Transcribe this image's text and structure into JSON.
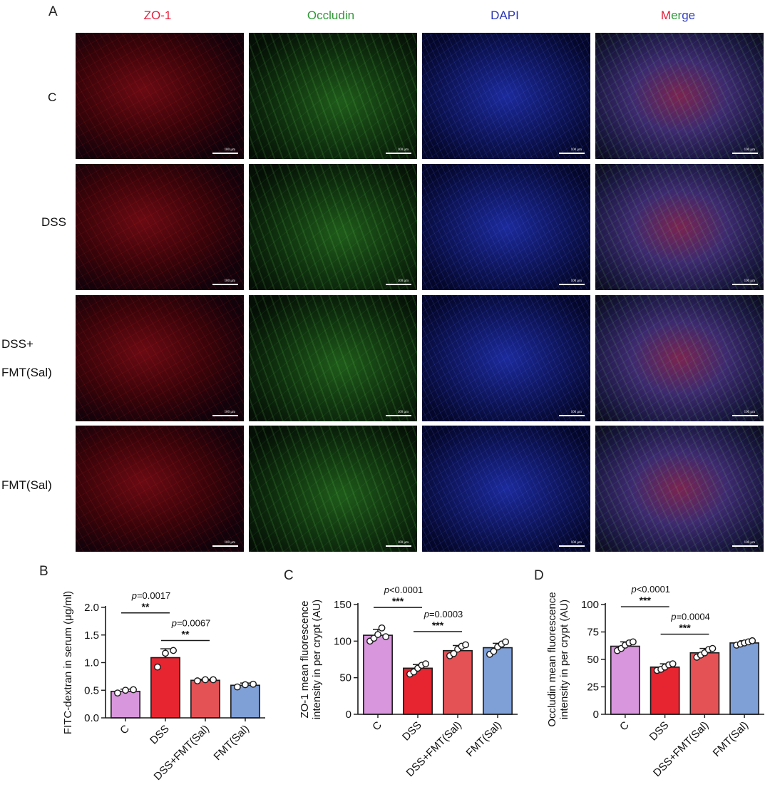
{
  "panel_a": {
    "letter": "A",
    "columns": [
      {
        "label": "ZO-1",
        "color": "#e2233e",
        "channel": "red"
      },
      {
        "label": "Occludin",
        "color": "#2f9a36",
        "channel": "green"
      },
      {
        "label": "DAPI",
        "color": "#2a35b8",
        "channel": "blue"
      },
      {
        "label": "Merge",
        "color": "#5c5fa8",
        "channel": "merge",
        "parts": [
          "M",
          "er",
          "ge"
        ]
      }
    ],
    "rows": [
      {
        "label_lines": [
          "C"
        ]
      },
      {
        "label_lines": [
          "DSS"
        ]
      },
      {
        "label_lines": [
          "DSS+",
          "FMT(Sal)"
        ]
      },
      {
        "label_lines": [
          "FMT(Sal)"
        ]
      }
    ],
    "scale_bar_text": "100 μm"
  },
  "chart_data": [
    {
      "panel": "B",
      "type": "bar",
      "categories": [
        "C",
        "DSS",
        "DSS+FMT(Sal)",
        "FMT(Sal)"
      ],
      "values": [
        0.48,
        1.09,
        0.68,
        0.59
      ],
      "errors": [
        0.04,
        0.16,
        0.02,
        0.04
      ],
      "points": [
        [
          0.45,
          0.5,
          0.51
        ],
        [
          0.92,
          1.17,
          1.22
        ],
        [
          0.67,
          0.69,
          0.69
        ],
        [
          0.56,
          0.6,
          0.61
        ]
      ],
      "colors": [
        "#d896dc",
        "#e62530",
        "#e55256",
        "#7f9fd7"
      ],
      "ylabel": "FITC-dextran in serum (μg/ml)",
      "xlabel": "",
      "ylim": [
        0,
        2.0
      ],
      "yticks": [
        0,
        0.5,
        1.0,
        1.5,
        2.0
      ],
      "ytick_labels": [
        "0.0",
        "0.5",
        "1.0",
        "1.5",
        "2.0"
      ],
      "annotations": [
        {
          "from": 0,
          "to": 1,
          "p": "=0.0017",
          "stars": "**",
          "y": 1.9
        },
        {
          "from": 1,
          "to": 2,
          "p": "=0.0067",
          "stars": "**",
          "y": 1.4
        }
      ]
    },
    {
      "panel": "C",
      "type": "bar",
      "categories": [
        "C",
        "DSS",
        "DSS+FMT(Sal)",
        "FMT(Sal)"
      ],
      "values": [
        108,
        63,
        87,
        91
      ],
      "errors": [
        8,
        5,
        7,
        6
      ],
      "points": [
        [
          100,
          104,
          109,
          118,
          106
        ],
        [
          55,
          58,
          63,
          67,
          69
        ],
        [
          80,
          83,
          89,
          93,
          95
        ],
        [
          82,
          86,
          92,
          96,
          99
        ]
      ],
      "colors": [
        "#d896dc",
        "#e62530",
        "#e55256",
        "#7f9fd7"
      ],
      "ylabel": "ZO-1 mean fluorescence intensity in per crypt (AU)",
      "xlabel": "",
      "ylim": [
        0,
        150
      ],
      "yticks": [
        0,
        50,
        100,
        150
      ],
      "ytick_labels": [
        "0",
        "50",
        "100",
        "150"
      ],
      "annotations": [
        {
          "from": 0,
          "to": 1,
          "p": "<0.0001",
          "stars": "***",
          "y": 146
        },
        {
          "from": 1,
          "to": 2,
          "p": "=0.0003",
          "stars": "***",
          "y": 113
        }
      ]
    },
    {
      "panel": "D",
      "type": "bar",
      "categories": [
        "C",
        "DSS",
        "DSS+FMT(Sal)",
        "FMT(Sal)"
      ],
      "values": [
        62,
        43,
        56,
        65
      ],
      "errors": [
        4,
        3,
        4,
        2
      ],
      "points": [
        [
          58,
          60,
          63,
          65,
          66
        ],
        [
          40,
          41,
          43,
          45,
          46
        ],
        [
          52,
          54,
          56,
          59,
          60
        ],
        [
          63,
          64,
          65,
          66,
          67
        ]
      ],
      "colors": [
        "#d896dc",
        "#e62530",
        "#e55256",
        "#7f9fd7"
      ],
      "ylabel": "Occludin mean fluorescence intensity in per crypt (AU)",
      "xlabel": "",
      "ylim": [
        0,
        100
      ],
      "yticks": [
        0,
        25,
        50,
        75,
        100
      ],
      "ytick_labels": [
        "0",
        "25",
        "50",
        "75",
        "100"
      ],
      "annotations": [
        {
          "from": 0,
          "to": 1,
          "p": "<0.0001",
          "stars": "***",
          "y": 98
        },
        {
          "from": 1,
          "to": 2,
          "p": "=0.0004",
          "stars": "***",
          "y": 73
        }
      ]
    }
  ]
}
